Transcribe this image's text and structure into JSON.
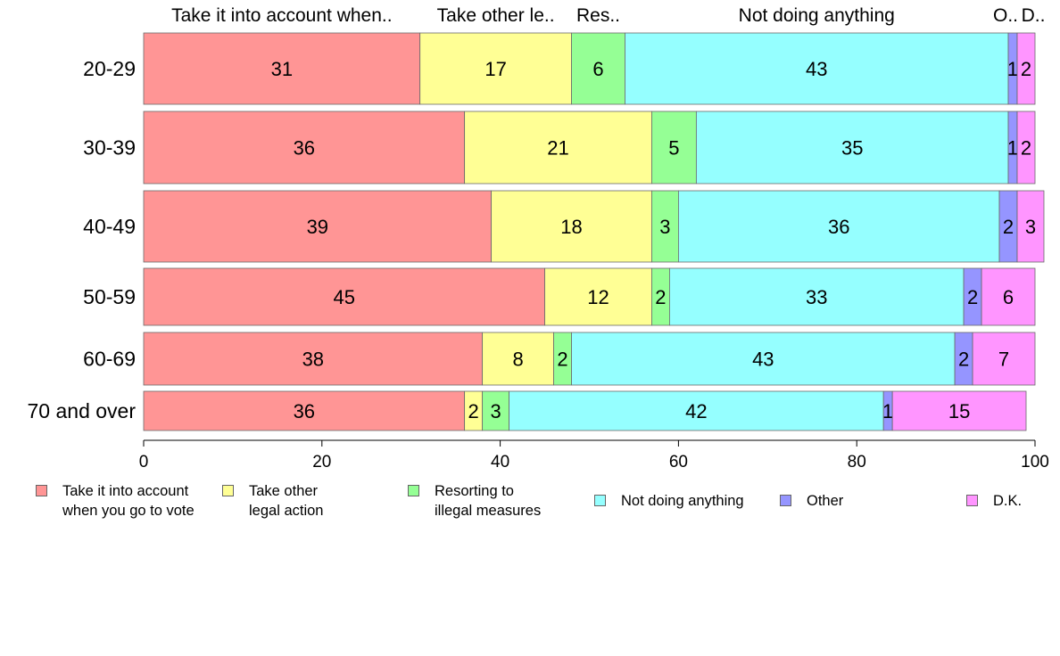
{
  "chart_data": {
    "type": "bar",
    "orientation": "horizontal",
    "stacked": true,
    "categories": [
      "20-29",
      "30-39",
      "40-49",
      "50-59",
      "60-69",
      "70 and over"
    ],
    "series": [
      {
        "name": "Take it into account\nwhen you go to vote",
        "top_label": "Take it into account when..",
        "color": "#ff9595",
        "values": [
          31,
          36,
          39,
          45,
          38,
          36
        ]
      },
      {
        "name": "Take other\nlegal action",
        "top_label": "Take other le..",
        "color": "#ffff95",
        "values": [
          17,
          21,
          18,
          12,
          8,
          2
        ]
      },
      {
        "name": "Resorting to\nillegal measures",
        "top_label": "Res..",
        "color": "#95ff95",
        "values": [
          6,
          5,
          3,
          2,
          2,
          3
        ]
      },
      {
        "name": "Not doing anything",
        "top_label": "Not doing anything",
        "color": "#95ffff",
        "values": [
          43,
          35,
          36,
          33,
          43,
          42
        ]
      },
      {
        "name": "Other",
        "top_label": "O..",
        "color": "#9595ff",
        "values": [
          1,
          1,
          2,
          2,
          2,
          1
        ]
      },
      {
        "name": "D.K.",
        "top_label": "D..",
        "color": "#ff95ff",
        "values": [
          2,
          2,
          3,
          6,
          7,
          15
        ]
      }
    ],
    "xlim": [
      0,
      100
    ],
    "xticks": [
      0,
      20,
      40,
      60,
      80,
      100
    ],
    "grid": false,
    "legend_position": "bottom"
  }
}
